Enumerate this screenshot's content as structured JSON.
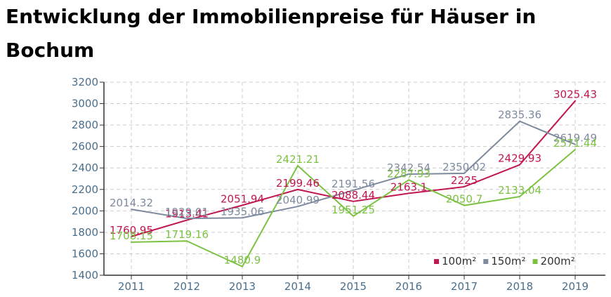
{
  "page": {
    "title": "Entwicklung der Immobilienpreise für Häuser in Bochum"
  },
  "chart_data": {
    "type": "line",
    "title": "Entwicklung der Immobilienpreise für Häuser in Bochum",
    "xlabel": "",
    "ylabel": "",
    "categories": [
      "2011",
      "2012",
      "2013",
      "2014",
      "2015",
      "2016",
      "2017",
      "2018",
      "2019"
    ],
    "ylim": [
      1400,
      3200
    ],
    "yticks": [
      1400,
      1600,
      1800,
      2000,
      2200,
      2400,
      2600,
      2800,
      3000,
      3200
    ],
    "grid": true,
    "legend_position": "bottom-right",
    "series": [
      {
        "name": "100m²",
        "color": "#c0174f",
        "values": [
          1760.95,
          1913.41,
          2051.94,
          2199.46,
          2088.44,
          2163.1,
          2225,
          2429.93,
          3025.43
        ],
        "labels": [
          "1760.95",
          "1913.41",
          "2051.94",
          "2199.46",
          "2088.44",
          "2163.1",
          "2225",
          "2429.93",
          "3025.43"
        ]
      },
      {
        "name": "150m²",
        "color": "#7e8a9e",
        "values": [
          2014.32,
          1929.01,
          1935.06,
          2040.99,
          2191.56,
          2342.54,
          2350.02,
          2835.36,
          2619.49
        ],
        "labels": [
          "2014.32",
          "1929.01",
          "1935.06",
          "2040.99",
          "2191.56",
          "2342.54",
          "2350.02",
          "2835.36",
          "2619.49"
        ]
      },
      {
        "name": "200m²",
        "color": "#7cc242",
        "values": [
          1708.15,
          1719.16,
          1480.9,
          2421.21,
          1951.25,
          2287.93,
          2050.7,
          2133.04,
          2571.44
        ],
        "labels": [
          "1708.15",
          "1719.16",
          "1480.9",
          "2421.21",
          "1951.25",
          "2287.93",
          "2050.7",
          "2133.04",
          "2571.44"
        ]
      }
    ]
  }
}
